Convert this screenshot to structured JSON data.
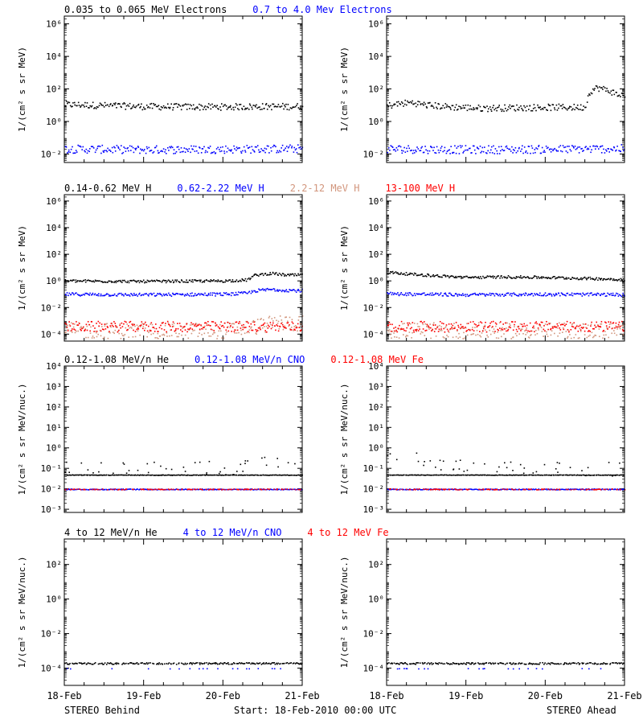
{
  "figure": {
    "footer": {
      "left": "STEREO Behind",
      "center": "Start: 18-Feb-2010 00:00 UTC",
      "right": "STEREO Ahead"
    }
  },
  "chart_data": [
    {
      "type": "scatter",
      "log_y": true,
      "title_parts": [
        {
          "text": "0.035 to 0.065 MeV Electrons",
          "color": "#000000"
        },
        {
          "text": "0.7 to 4.0 Mev Electrons",
          "color": "#0000ff"
        }
      ],
      "ylabel": "1/(cm² s sr MeV)",
      "ylim": [
        0.003,
        3000000
      ],
      "y_ticks": [
        {
          "value": 0.01,
          "label": "10⁻²"
        },
        {
          "value": 1,
          "label": "10⁰"
        },
        {
          "value": 100,
          "label": "10²"
        },
        {
          "value": 10000,
          "label": "10⁴"
        },
        {
          "value": 1000000,
          "label": "10⁶"
        }
      ],
      "x_ticks": [
        "18-Feb",
        "19-Feb",
        "20-Feb",
        "21-Feb"
      ],
      "xlim": [
        0,
        3
      ],
      "panels": [
        {
          "name": "STEREO Behind",
          "series": [
            {
              "color": "#000000",
              "points": [
                [
                  0,
                  12
                ],
                [
                  0.3,
                  11
                ],
                [
                  0.6,
                  10
                ],
                [
                  1,
                  9
                ],
                [
                  1.5,
                  8.5
                ],
                [
                  2,
                  8.5
                ],
                [
                  2.5,
                  9
                ],
                [
                  3,
                  9
                ]
              ],
              "scatter": 0.2
            },
            {
              "color": "#0000ff",
              "points": [
                [
                  0,
                  0.022
                ],
                [
                  1,
                  0.02
                ],
                [
                  2,
                  0.021
                ],
                [
                  3,
                  0.023
                ]
              ],
              "scatter": 0.25
            }
          ]
        },
        {
          "name": "STEREO Ahead",
          "series": [
            {
              "color": "#000000",
              "points": [
                [
                  0,
                  10
                ],
                [
                  0.15,
                  13
                ],
                [
                  0.3,
                  16
                ],
                [
                  0.5,
                  11
                ],
                [
                  0.8,
                  8.5
                ],
                [
                  1.2,
                  7
                ],
                [
                  1.6,
                  7.5
                ],
                [
                  2,
                  8
                ],
                [
                  2.45,
                  8
                ],
                [
                  2.5,
                  9
                ],
                [
                  2.55,
                  70
                ],
                [
                  2.65,
                  130
                ],
                [
                  2.8,
                  85
                ],
                [
                  2.9,
                  50
                ],
                [
                  3,
                  40
                ]
              ],
              "scatter": 0.2
            },
            {
              "color": "#0000ff",
              "points": [
                [
                  0,
                  0.022
                ],
                [
                  1,
                  0.02
                ],
                [
                  2,
                  0.021
                ],
                [
                  3,
                  0.023
                ]
              ],
              "scatter": 0.25
            }
          ]
        }
      ]
    },
    {
      "type": "scatter",
      "log_y": true,
      "title_parts": [
        {
          "text": "0.14-0.62 MeV H",
          "color": "#000000"
        },
        {
          "text": "0.62-2.22 MeV H",
          "color": "#0000ff"
        },
        {
          "text": "2.2-12 MeV H",
          "color": "#d2967d"
        },
        {
          "text": "13-100 MeV H",
          "color": "#ff0000"
        }
      ],
      "ylabel": "1/(cm² s sr MeV)",
      "ylim": [
        3e-05,
        3000000
      ],
      "y_ticks": [
        {
          "value": 0.0001,
          "label": "10⁻⁴"
        },
        {
          "value": 0.01,
          "label": "10⁻²"
        },
        {
          "value": 1,
          "label": "10⁰"
        },
        {
          "value": 100,
          "label": "10²"
        },
        {
          "value": 10000,
          "label": "10⁴"
        },
        {
          "value": 1000000,
          "label": "10⁶"
        }
      ],
      "x_ticks": [
        "18-Feb",
        "19-Feb",
        "20-Feb",
        "21-Feb"
      ],
      "xlim": [
        0,
        3
      ],
      "panels": [
        {
          "name": "STEREO Behind",
          "series": [
            {
              "color": "#000000",
              "points": [
                [
                  0,
                  1.1
                ],
                [
                  1,
                  1
                ],
                [
                  2,
                  1.1
                ],
                [
                  2.3,
                  1.3
                ],
                [
                  2.4,
                  3
                ],
                [
                  2.6,
                  4
                ],
                [
                  2.8,
                  3
                ],
                [
                  3,
                  3
                ]
              ],
              "scatter": 0.1
            },
            {
              "color": "#0000ff",
              "points": [
                [
                  0,
                  0.11
                ],
                [
                  1,
                  0.1
                ],
                [
                  2,
                  0.11
                ],
                [
                  2.3,
                  0.13
                ],
                [
                  2.4,
                  0.2
                ],
                [
                  2.6,
                  0.25
                ],
                [
                  3,
                  0.2
                ]
              ],
              "scatter": 0.12
            },
            {
              "color": "#d2967d",
              "points": [
                [
                  0,
                  0.0002
                ],
                [
                  1,
                  0.0002
                ],
                [
                  2,
                  0.0002
                ],
                [
                  2.4,
                  0.0004
                ],
                [
                  2.7,
                  0.0008
                ],
                [
                  3,
                  0.0007
                ]
              ],
              "scatter": 0.6
            },
            {
              "color": "#ff0000",
              "points": [
                [
                  0,
                  0.0004
                ],
                [
                  1.5,
                  0.0004
                ],
                [
                  3,
                  0.0004
                ]
              ],
              "scatter": 0.4
            }
          ]
        },
        {
          "name": "STEREO Ahead",
          "series": [
            {
              "color": "#000000",
              "points": [
                [
                  0,
                  5
                ],
                [
                  0.3,
                  3.5
                ],
                [
                  0.7,
                  2.5
                ],
                [
                  1,
                  2
                ],
                [
                  1.5,
                  2.2
                ],
                [
                  2,
                  2
                ],
                [
                  2.5,
                  1.7
                ],
                [
                  3,
                  1.4
                ]
              ],
              "scatter": 0.1
            },
            {
              "color": "#0000ff",
              "points": [
                [
                  0,
                  0.12
                ],
                [
                  1,
                  0.1
                ],
                [
                  2,
                  0.11
                ],
                [
                  3,
                  0.1
                ]
              ],
              "scatter": 0.12
            },
            {
              "color": "#d2967d",
              "points": [
                [
                  0,
                  0.0002
                ],
                [
                  1.5,
                  0.0002
                ],
                [
                  3,
                  0.0002
                ]
              ],
              "scatter": 0.6
            },
            {
              "color": "#ff0000",
              "points": [
                [
                  0,
                  0.0004
                ],
                [
                  1.5,
                  0.0004
                ],
                [
                  3,
                  0.0004
                ]
              ],
              "scatter": 0.4
            }
          ]
        }
      ]
    },
    {
      "type": "scatter",
      "log_y": true,
      "title_parts": [
        {
          "text": "0.12-1.08 MeV/n He",
          "color": "#000000"
        },
        {
          "text": "0.12-1.08 MeV/n CNO",
          "color": "#0000ff"
        },
        {
          "text": "0.12-1.08 MeV Fe",
          "color": "#ff0000"
        }
      ],
      "ylabel": "1/(cm² s sr MeV/nuc.)",
      "ylim": [
        0.0007,
        10000
      ],
      "y_ticks": [
        {
          "value": 0.001,
          "label": "10⁻³"
        },
        {
          "value": 0.01,
          "label": "10⁻²"
        },
        {
          "value": 0.1,
          "label": "10⁻¹"
        },
        {
          "value": 1,
          "label": "10⁰"
        },
        {
          "value": 10,
          "label": "10¹"
        },
        {
          "value": 100,
          "label": "10²"
        },
        {
          "value": 1000,
          "label": "10³"
        },
        {
          "value": 10000,
          "label": "10⁴"
        }
      ],
      "x_ticks": [
        "18-Feb",
        "19-Feb",
        "20-Feb",
        "21-Feb"
      ],
      "xlim": [
        0,
        3
      ],
      "panels": [
        {
          "name": "STEREO Behind",
          "series": [
            {
              "color": "#000000",
              "points": [
                [
                  0,
                  0.1
                ],
                [
                  1,
                  0.1
                ],
                [
                  2,
                  0.11
                ],
                [
                  2.35,
                  0.12
                ],
                [
                  2.45,
                  0.4
                ],
                [
                  2.6,
                  0.3
                ],
                [
                  2.8,
                  0.25
                ],
                [
                  3,
                  0.3
                ]
              ],
              "scatter": 0.35,
              "sparse": 0.8
            },
            {
              "color": "#000000",
              "points": [
                [
                  0,
                  0.05
                ],
                [
                  3,
                  0.05
                ]
              ],
              "scatter": 0.01
            },
            {
              "color": "#0000ff",
              "points": [
                [
                  0,
                  0.01
                ],
                [
                  3,
                  0.01
                ]
              ],
              "scatter": 0.02
            },
            {
              "color": "#ff0000",
              "points": [
                [
                  0,
                  0.01
                ],
                [
                  3,
                  0.01
                ]
              ],
              "scatter": 0.02,
              "sparse": 0.5
            }
          ]
        },
        {
          "name": "STEREO Ahead",
          "series": [
            {
              "color": "#000000",
              "points": [
                [
                  0,
                  0.3
                ],
                [
                  0.2,
                  0.45
                ],
                [
                  0.4,
                  0.25
                ],
                [
                  0.7,
                  0.15
                ],
                [
                  1,
                  0.12
                ],
                [
                  1.5,
                  0.1
                ],
                [
                  2,
                  0.1
                ],
                [
                  3,
                  0.1
                ]
              ],
              "scatter": 0.35,
              "sparse": 0.8
            },
            {
              "color": "#000000",
              "points": [
                [
                  0,
                  0.05
                ],
                [
                  3,
                  0.05
                ]
              ],
              "scatter": 0.01
            },
            {
              "color": "#0000ff",
              "points": [
                [
                  0,
                  0.01
                ],
                [
                  3,
                  0.01
                ]
              ],
              "scatter": 0.02
            },
            {
              "color": "#ff0000",
              "points": [
                [
                  0,
                  0.01
                ],
                [
                  3,
                  0.01
                ]
              ],
              "scatter": 0.02,
              "sparse": 0.5
            }
          ]
        }
      ]
    },
    {
      "type": "scatter",
      "log_y": true,
      "title_parts": [
        {
          "text": "4 to 12 MeV/n He",
          "color": "#000000"
        },
        {
          "text": "4 to 12 MeV/n CNO",
          "color": "#0000ff"
        },
        {
          "text": "4 to 12 MeV Fe",
          "color": "#ff0000"
        }
      ],
      "ylabel": "1/(cm² s sr MeV/nuc.)",
      "ylim": [
        1e-05,
        3000
      ],
      "y_ticks": [
        {
          "value": 0.0001,
          "label": "10⁻⁴"
        },
        {
          "value": 0.01,
          "label": "10⁻²"
        },
        {
          "value": 1,
          "label": "10⁰"
        },
        {
          "value": 100,
          "label": "10²"
        }
      ],
      "x_ticks": [
        "18-Feb",
        "19-Feb",
        "20-Feb",
        "21-Feb"
      ],
      "xlim": [
        0,
        3
      ],
      "panels": [
        {
          "name": "STEREO Behind",
          "series": [
            {
              "color": "#000000",
              "points": [
                [
                  0,
                  0.0002
                ],
                [
                  3,
                  0.0002
                ]
              ],
              "scatter": 0.05,
              "sparse": 0.15
            },
            {
              "color": "#0000ff",
              "points": [
                [
                  0,
                  0.0001
                ],
                [
                  3,
                  0.0001
                ]
              ],
              "scatter": 0.01,
              "sparse": 0.9
            }
          ]
        },
        {
          "name": "STEREO Ahead",
          "series": [
            {
              "color": "#000000",
              "points": [
                [
                  0,
                  0.0002
                ],
                [
                  3,
                  0.0002
                ]
              ],
              "scatter": 0.05,
              "sparse": 0.15
            },
            {
              "color": "#0000ff",
              "points": [
                [
                  0,
                  0.0001
                ],
                [
                  3,
                  0.0001
                ]
              ],
              "scatter": 0.01,
              "sparse": 0.9
            }
          ]
        }
      ]
    }
  ]
}
